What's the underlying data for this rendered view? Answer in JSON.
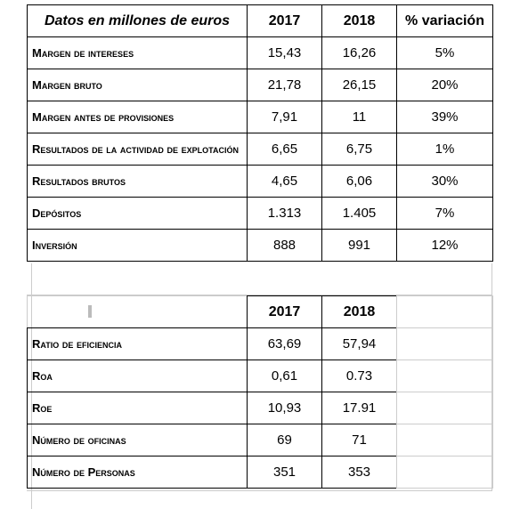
{
  "table": {
    "header": [
      "Datos en millones de euros",
      "2017",
      "2018",
      "% variación"
    ],
    "rows": [
      [
        "Margen de intereses",
        "15,43",
        "16,26",
        "5%"
      ],
      [
        "Margen bruto",
        "21,78",
        "26,15",
        "20%"
      ],
      [
        "Margen antes de provisiones",
        "7,91",
        "11",
        "39%"
      ],
      [
        "Resultados de la actividad de explotación",
        "6,65",
        "6,75",
        "1%"
      ],
      [
        "Resultados brutos",
        "4,65",
        "6,06",
        "30%"
      ],
      [
        "Depósitos",
        "1.313",
        "1.405",
        "7%"
      ],
      [
        "Inversión",
        "888",
        "991",
        "12%"
      ]
    ]
  },
  "ratios": {
    "header": [
      "2017",
      "2018"
    ],
    "rows": [
      [
        "Ratio de eficiencia",
        "63,69",
        "57,94"
      ],
      [
        "Roa",
        "0,61",
        "0.73"
      ],
      [
        "Roe",
        "10,93",
        "17.91"
      ],
      [
        "Número de oficinas",
        "69",
        "71"
      ],
      [
        "Número de Personas",
        "351",
        "353"
      ]
    ]
  }
}
